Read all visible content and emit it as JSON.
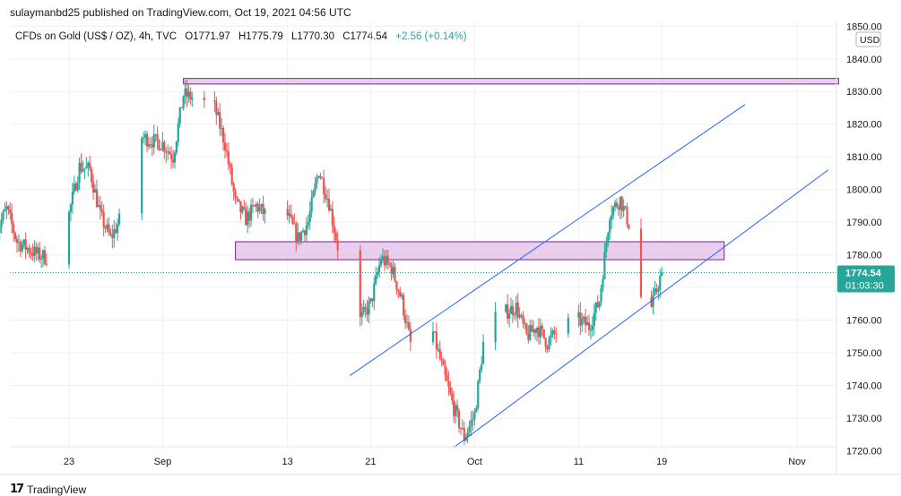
{
  "publisher_line": "sulaymanbd25 published on TradingView.com, Oct 19, 2021 04:56 UTC",
  "symbol": {
    "name": "CFDs on Gold (US$ / OZ), 4h, TVC",
    "open": "O1771.97",
    "high": "H1775.79",
    "low": "L1770.30",
    "close": "C1774.54",
    "change": "+2.56 (+0.14%)"
  },
  "footer": {
    "logo_icon": "tradingview-logo-icon",
    "brand": "TradingView"
  },
  "colors": {
    "up": "#26a69a",
    "down": "#ef5350",
    "channel": "#2962ff",
    "zone_fill": "#e1bee7",
    "zone_border": "#7b1fa2",
    "price_tag": "#26a69a"
  },
  "chart_data": {
    "type": "candlestick",
    "title": "CFDs on Gold (US$ / OZ), 4h, TVC",
    "ylim": [
      1716,
      1852
    ],
    "currency_label": "USD",
    "y_ticks": [
      1720,
      1730,
      1740,
      1750,
      1760,
      1770,
      1780,
      1790,
      1800,
      1810,
      1820,
      1830,
      1840,
      1850
    ],
    "y_tick_labels": [
      "1720.00",
      "1730.00",
      "1740.00",
      "1750.00",
      "1760.00",
      "1770.00",
      "1780.00",
      "1790.00",
      "1800.00",
      "1810.00",
      "1820.00",
      "1830.00",
      "1840.00",
      "1850.00"
    ],
    "x_labels": [
      "23",
      "Sep",
      "13",
      "21",
      "Oct",
      "11",
      "19",
      "Nov"
    ],
    "x_label_dates": [
      "Aug 23",
      "Sep 1",
      "Sep 13",
      "Sep 21",
      "Oct 1",
      "Oct 11",
      "Oct 19",
      "Nov 1"
    ],
    "last_price": {
      "value": 1774.54,
      "label": "1774.54",
      "countdown": "01:03:30"
    },
    "zones": [
      {
        "from": "Sep 3",
        "to": "Nov 5",
        "low": 1832.3,
        "high": 1834.0
      },
      {
        "from": "Sep 8",
        "to": "Oct 25",
        "low": 1778.5,
        "high": 1784.0
      }
    ],
    "channel_lines": [
      {
        "from": {
          "date": "Sep 19",
          "value": 1743
        },
        "to": {
          "date": "Oct 27",
          "value": 1826
        }
      },
      {
        "from": {
          "date": "Sep 29",
          "value": 1721
        },
        "to": {
          "date": "Nov 4",
          "value": 1806
        }
      }
    ],
    "waypoints": [
      [
        "Aug 16",
        1787
      ],
      [
        "Aug 17",
        1794
      ],
      [
        "Aug 18",
        1784
      ],
      [
        "Aug 20",
        1780
      ],
      [
        "Aug 22",
        1778
      ],
      [
        "Aug 24",
        1807
      ],
      [
        "Aug 25",
        1806
      ],
      [
        "Aug 26",
        1792
      ],
      [
        "Aug 27",
        1785
      ],
      [
        "Aug 29",
        1798
      ],
      [
        "Aug 30",
        1816
      ],
      [
        "Sep 1",
        1814
      ],
      [
        "Sep 2",
        1810
      ],
      [
        "Sep 3",
        1829
      ],
      [
        "Sep 4",
        1828
      ],
      [
        "Sep 6",
        1825
      ],
      [
        "Sep 7",
        1814
      ],
      [
        "Sep 8",
        1796
      ],
      [
        "Sep 9",
        1791
      ],
      [
        "Sep 10",
        1795
      ],
      [
        "Sep 11",
        1792
      ],
      [
        "Sep 12",
        1793
      ],
      [
        "Sep 13",
        1792
      ],
      [
        "Sep 14",
        1785
      ],
      [
        "Sep 15",
        1790
      ],
      [
        "Sep 16",
        1806
      ],
      [
        "Sep 17",
        1796
      ],
      [
        "Sep 18",
        1780
      ],
      [
        "Sep 19",
        1753
      ],
      [
        "Sep 20",
        1760
      ],
      [
        "Sep 21",
        1765
      ],
      [
        "Sep 22",
        1779
      ],
      [
        "Sep 23",
        1776
      ],
      [
        "Sep 24",
        1766
      ],
      [
        "Sep 25",
        1750
      ],
      [
        "Sep 26",
        1745
      ],
      [
        "Sep 27",
        1756
      ],
      [
        "Sep 28",
        1744
      ],
      [
        "Sep 29",
        1733
      ],
      [
        "Sep 30",
        1724
      ],
      [
        "Oct 1",
        1731
      ],
      [
        "Oct 2",
        1757
      ],
      [
        "Oct 3",
        1761
      ],
      [
        "Oct 5",
        1764
      ],
      [
        "Oct 6",
        1755
      ],
      [
        "Oct 7",
        1758
      ],
      [
        "Oct 8",
        1753
      ],
      [
        "Oct 9",
        1757
      ],
      [
        "Oct 10",
        1759
      ],
      [
        "Oct 11",
        1760
      ],
      [
        "Oct 12",
        1758
      ],
      [
        "Oct 13",
        1766
      ],
      [
        "Oct 14",
        1793
      ],
      [
        "Oct 15",
        1797
      ],
      [
        "Oct 16",
        1788
      ],
      [
        "Oct 17",
        1767
      ],
      [
        "Oct 18",
        1764
      ],
      [
        "Oct 19",
        1774.54
      ]
    ]
  }
}
